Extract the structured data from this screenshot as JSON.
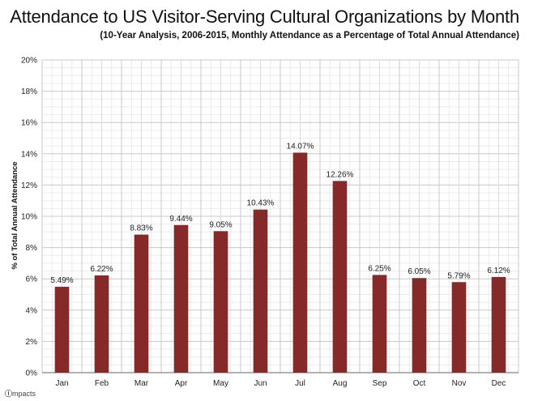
{
  "chart_data": {
    "type": "bar",
    "title": "Attendance to US Visitor-Serving Cultural Organizations by Month",
    "subtitle": "(10-Year Analysis, 2006-2015, Monthly Attendance as a Percentage of Total Annual Attendance)",
    "xlabel": "",
    "ylabel": "% of Total Annual Attendance",
    "ylim": [
      0,
      20
    ],
    "yticks": [
      "0%",
      "2%",
      "4%",
      "6%",
      "8%",
      "10%",
      "12%",
      "14%",
      "16%",
      "18%",
      "20%"
    ],
    "ytick_values": [
      0,
      2,
      4,
      6,
      8,
      10,
      12,
      14,
      16,
      18,
      20
    ],
    "categories": [
      "Jan",
      "Feb",
      "Mar",
      "Apr",
      "May",
      "Jun",
      "Jul",
      "Aug",
      "Sep",
      "Oct",
      "Nov",
      "Dec"
    ],
    "values": [
      5.49,
      6.22,
      8.83,
      9.44,
      9.05,
      10.43,
      14.07,
      12.26,
      6.25,
      6.05,
      5.79,
      6.12
    ],
    "data_labels": [
      "5.49%",
      "6.22%",
      "8.83%",
      "9.44%",
      "9.05%",
      "10.43%",
      "14.07%",
      "12.26%",
      "6.25%",
      "6.05%",
      "5.79%",
      "6.12%"
    ],
    "grid": true,
    "minor_grid": true,
    "bar_color": "#852a28",
    "grid_color": "#c8c8c8",
    "minor_grid_color": "#ececec"
  },
  "branding": {
    "logo_icon": "circle-i-icon",
    "logo_text": "mpacts"
  }
}
